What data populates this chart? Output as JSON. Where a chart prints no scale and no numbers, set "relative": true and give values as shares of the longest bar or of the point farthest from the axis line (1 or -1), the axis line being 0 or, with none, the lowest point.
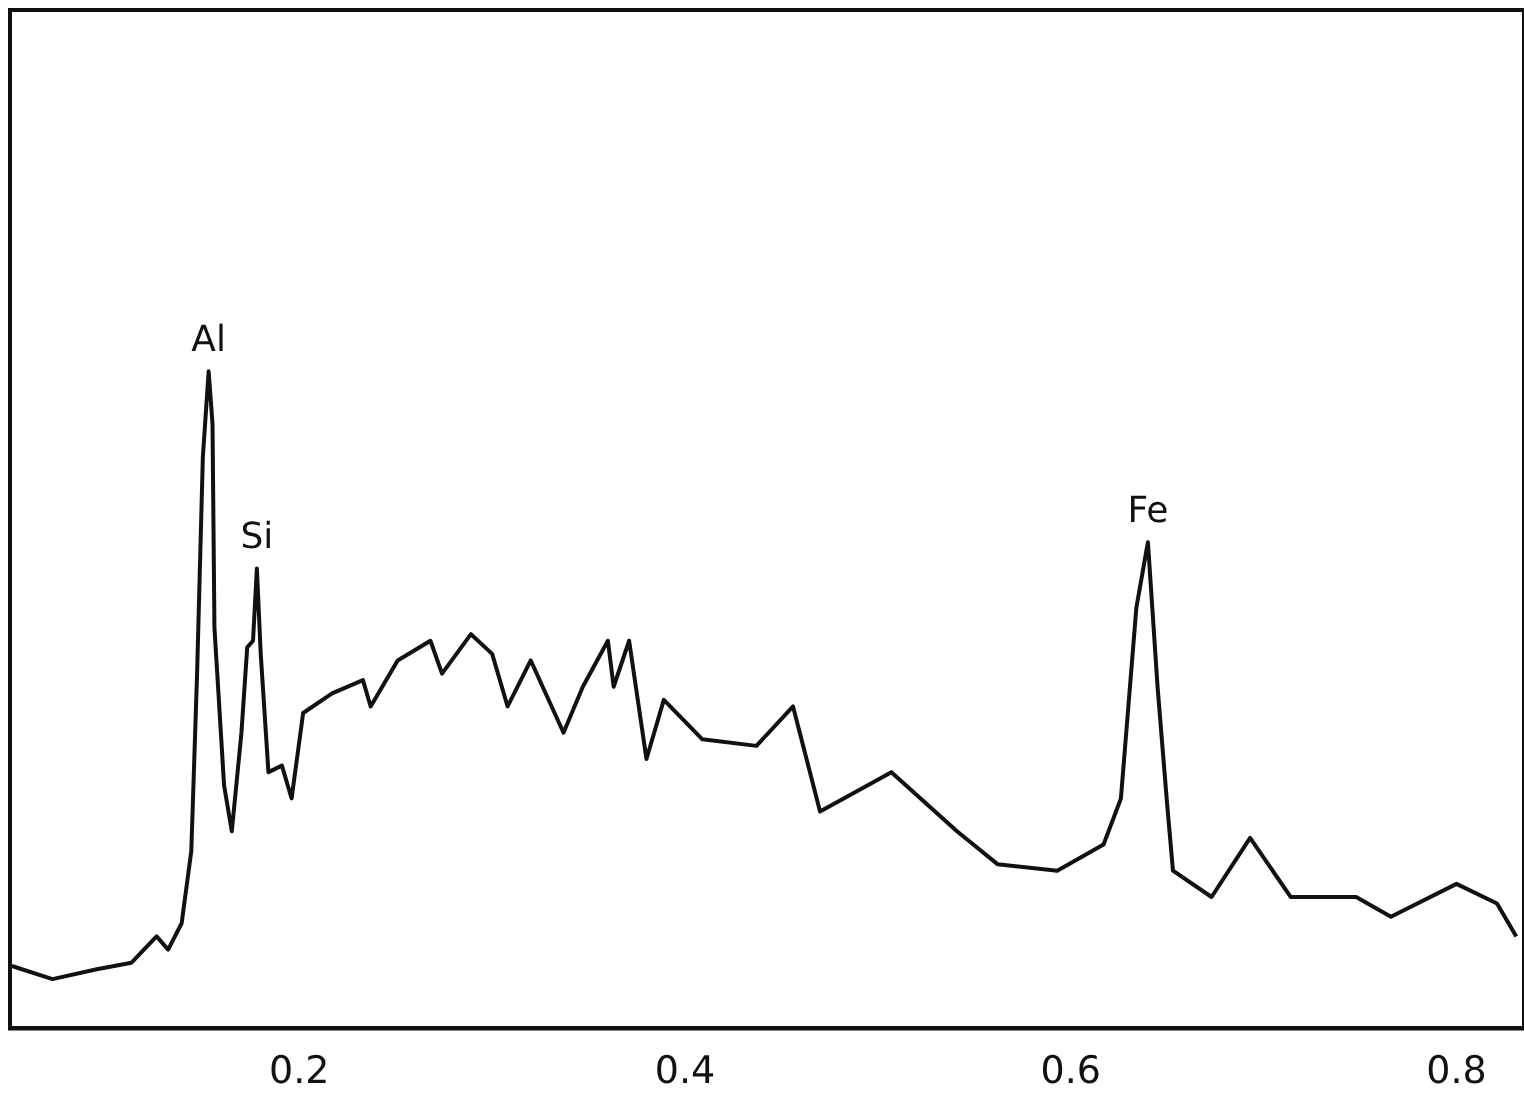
{
  "chart_data": {
    "type": "line",
    "relative": true,
    "grid": false,
    "marker": "none",
    "line_style": "solid",
    "xlim": [
      0.05,
      0.835
    ],
    "xticks": [
      0.2,
      0.4,
      0.6,
      0.8
    ],
    "annotations": [
      {
        "text": "Al",
        "x": 0.153,
        "y": 1.0
      },
      {
        "text": "Si",
        "x": 0.178,
        "y": 0.7
      },
      {
        "text": "Fe",
        "x": 0.64,
        "y": 0.74
      }
    ],
    "series": [
      {
        "color": "#111111",
        "x": [
          0.051,
          0.072,
          0.095,
          0.113,
          0.126,
          0.132,
          0.139,
          0.144,
          0.147,
          0.15,
          0.153,
          0.155,
          0.156,
          0.161,
          0.165,
          0.17,
          0.173,
          0.176,
          0.178,
          0.18,
          0.184,
          0.191,
          0.196,
          0.202,
          0.217,
          0.233,
          0.237,
          0.251,
          0.268,
          0.274,
          0.289,
          0.3,
          0.308,
          0.32,
          0.337,
          0.347,
          0.36,
          0.363,
          0.371,
          0.38,
          0.389,
          0.409,
          0.437,
          0.456,
          0.47,
          0.507,
          0.541,
          0.562,
          0.593,
          0.617,
          0.626,
          0.634,
          0.64,
          0.645,
          0.65,
          0.653,
          0.673,
          0.693,
          0.714,
          0.748,
          0.766,
          0.8,
          0.821,
          0.831
        ],
        "values": [
          0.095,
          0.075,
          0.09,
          0.1,
          0.14,
          0.12,
          0.16,
          0.27,
          0.54,
          0.87,
          1.0,
          0.92,
          0.61,
          0.37,
          0.3,
          0.45,
          0.58,
          0.59,
          0.7,
          0.57,
          0.39,
          0.4,
          0.35,
          0.48,
          0.51,
          0.53,
          0.49,
          0.56,
          0.59,
          0.54,
          0.6,
          0.57,
          0.49,
          0.56,
          0.45,
          0.52,
          0.59,
          0.52,
          0.59,
          0.41,
          0.5,
          0.44,
          0.43,
          0.49,
          0.33,
          0.39,
          0.3,
          0.25,
          0.24,
          0.28,
          0.35,
          0.64,
          0.74,
          0.52,
          0.34,
          0.24,
          0.2,
          0.29,
          0.2,
          0.2,
          0.17,
          0.22,
          0.19,
          0.14
        ]
      }
    ]
  }
}
